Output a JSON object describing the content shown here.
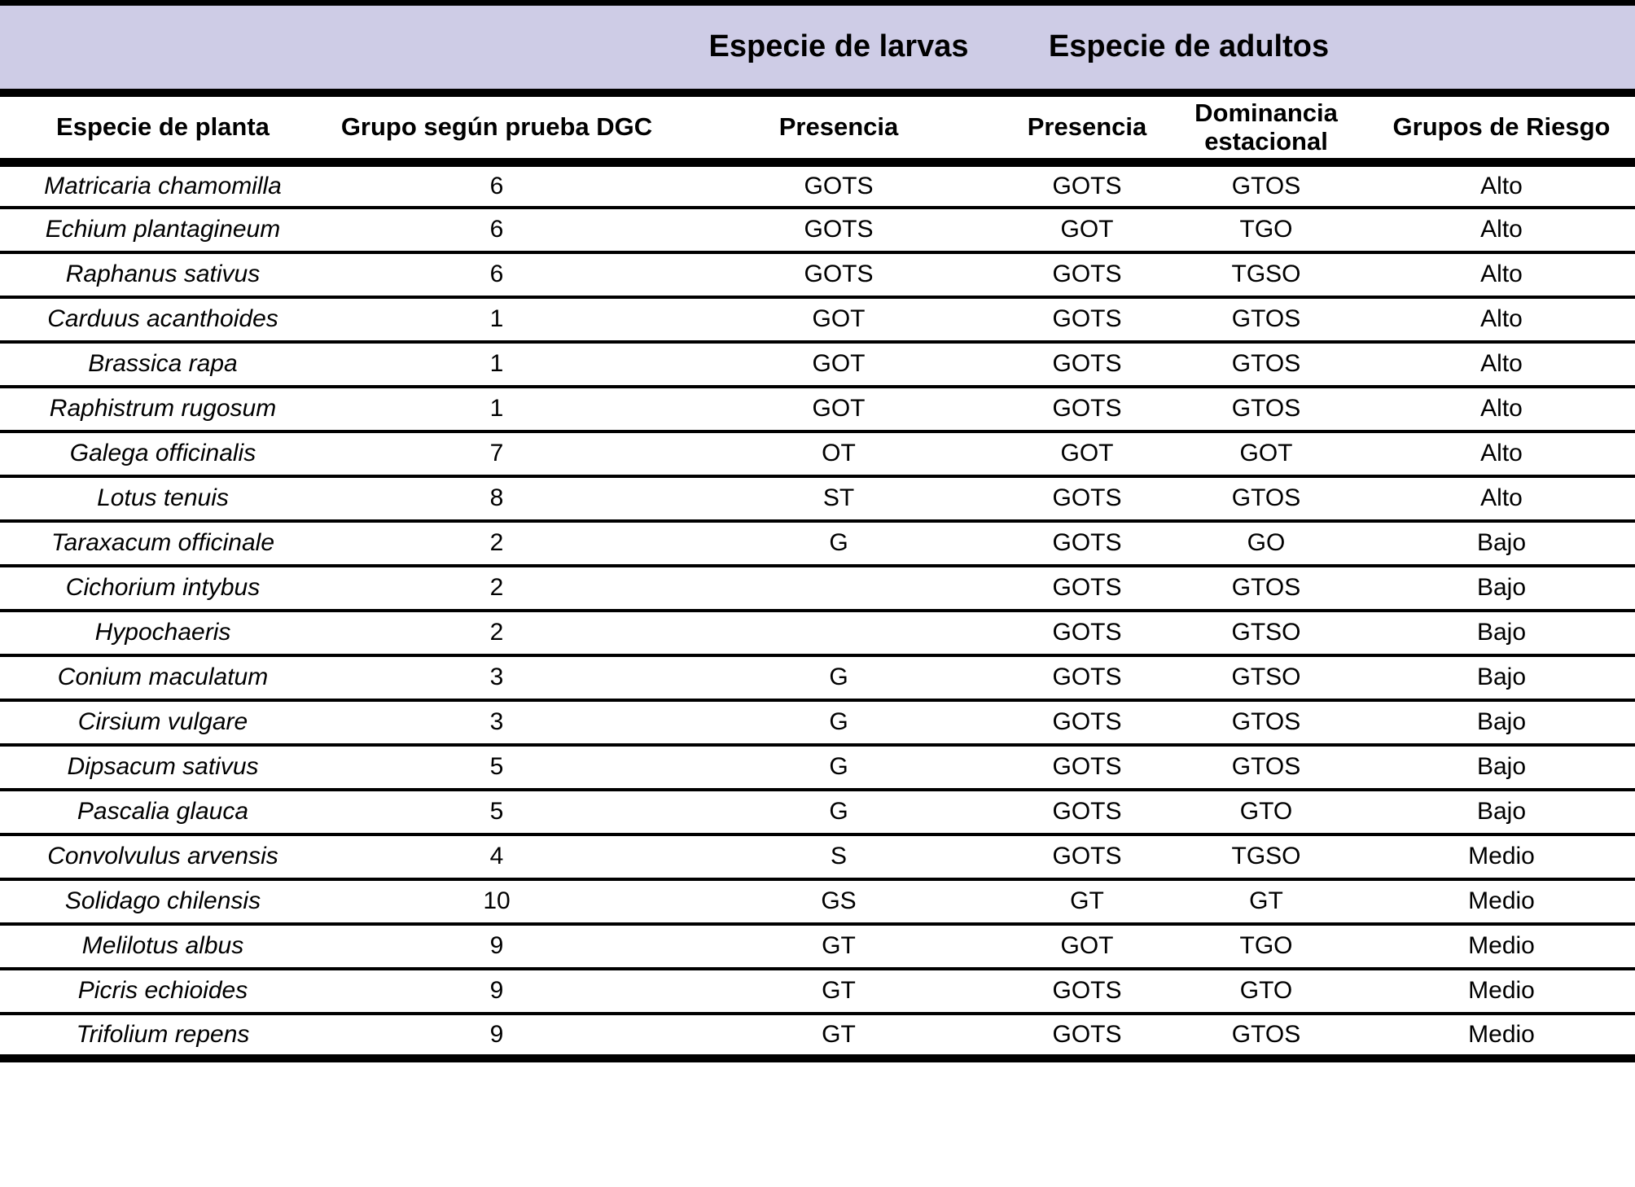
{
  "table": {
    "band": {
      "larvas": "Especie de larvas",
      "adultos": "Especie de adultos"
    },
    "columns": [
      "Especie de planta",
      "Grupo según prueba DGC",
      "Presencia",
      "Presencia",
      "Dominancia estacional",
      "Grupos de Riesgo"
    ],
    "rows": [
      [
        "Matricaria chamomilla",
        "6",
        "GOTS",
        "GOTS",
        "GTOS",
        "Alto"
      ],
      [
        "Echium plantagineum",
        "6",
        "GOTS",
        "GOT",
        "TGO",
        "Alto"
      ],
      [
        "Raphanus sativus",
        "6",
        "GOTS",
        "GOTS",
        "TGSO",
        "Alto"
      ],
      [
        "Carduus acanthoides",
        "1",
        "GOT",
        "GOTS",
        "GTOS",
        "Alto"
      ],
      [
        "Brassica rapa",
        "1",
        "GOT",
        "GOTS",
        "GTOS",
        "Alto"
      ],
      [
        "Raphistrum rugosum",
        "1",
        "GOT",
        "GOTS",
        "GTOS",
        "Alto"
      ],
      [
        "Galega officinalis",
        "7",
        "OT",
        "GOT",
        "GOT",
        "Alto"
      ],
      [
        "Lotus tenuis",
        "8",
        "ST",
        "GOTS",
        "GTOS",
        "Alto"
      ],
      [
        "Taraxacum officinale",
        "2",
        "G",
        "GOTS",
        "GO",
        "Bajo"
      ],
      [
        "Cichorium intybus",
        "2",
        "",
        "GOTS",
        "GTOS",
        "Bajo"
      ],
      [
        "Hypochaeris",
        "2",
        "",
        "GOTS",
        "GTSO",
        "Bajo"
      ],
      [
        "Conium maculatum",
        "3",
        "G",
        "GOTS",
        "GTSO",
        "Bajo"
      ],
      [
        "Cirsium vulgare",
        "3",
        "G",
        "GOTS",
        "GTOS",
        "Bajo"
      ],
      [
        "Dipsacum sativus",
        "5",
        "G",
        "GOTS",
        "GTOS",
        "Bajo"
      ],
      [
        "Pascalia glauca",
        "5",
        "G",
        "GOTS",
        "GTO",
        "Bajo"
      ],
      [
        "Convolvulus arvensis",
        "4",
        "S",
        "GOTS",
        "TGSO",
        "Medio"
      ],
      [
        "Solidago chilensis",
        "10",
        "GS",
        "GT",
        "GT",
        "Medio"
      ],
      [
        "Melilotus albus",
        "9",
        "GT",
        "GOT",
        "TGO",
        "Medio"
      ],
      [
        "Picris echioides",
        "9",
        "GT",
        "GOTS",
        "GTO",
        "Medio"
      ],
      [
        "Trifolium repens",
        "9",
        "GT",
        "GOTS",
        "GTOS",
        "Medio"
      ]
    ],
    "colors": {
      "band_bg": "#CECCE6",
      "rule": "#000000"
    }
  }
}
